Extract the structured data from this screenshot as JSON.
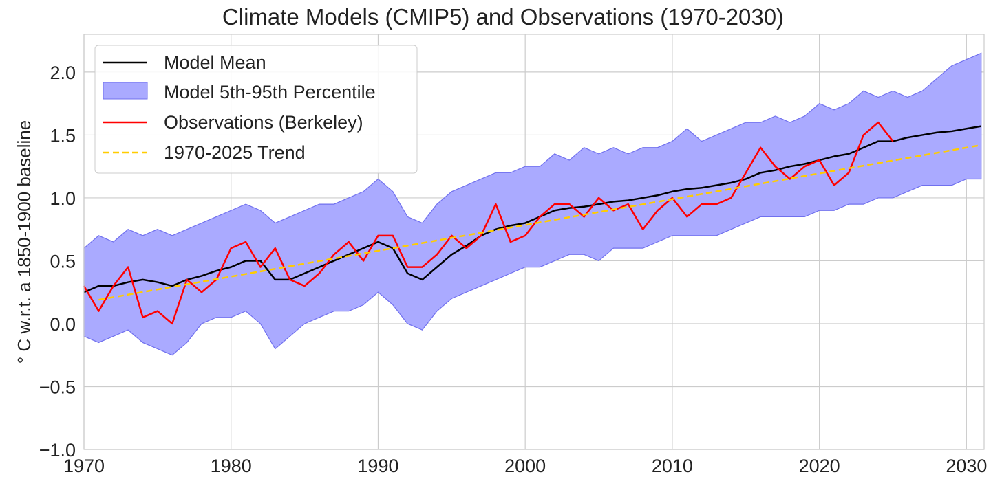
{
  "chart_data": {
    "type": "line",
    "title": "Climate Models (CMIP5) and Observations (1970-2030)",
    "xlabel": "",
    "ylabel": "° C w.r.t. a 1850-1900 baseline",
    "xlim": [
      1970,
      2031.2
    ],
    "ylim": [
      -1.0,
      2.3
    ],
    "grid": true,
    "legend_placement": "top-left",
    "x_ticks": [
      "1970",
      "1980",
      "1990",
      "2000",
      "2010",
      "2020",
      "2030"
    ],
    "y_ticks": [
      "−1.0",
      "−0.5",
      "0.0",
      "0.5",
      "1.0",
      "1.5",
      "2.0"
    ],
    "x_tick_values": [
      1970,
      1980,
      1990,
      2000,
      2010,
      2020,
      2030
    ],
    "y_tick_values": [
      -1.0,
      -0.5,
      0.0,
      0.5,
      1.0,
      1.5,
      2.0
    ],
    "legend": [
      "Model Mean",
      "Model 5th-95th Percentile",
      "Observations (Berkeley)",
      "1970-2025 Trend"
    ],
    "colors": {
      "mean": "#000000",
      "band_fill": "#aaaaff",
      "band_edge": "#7070ee",
      "obs": "#ff0000",
      "trend": "#ffcc00"
    },
    "model_years_start": 1970,
    "model_mean": [
      0.25,
      0.3,
      0.3,
      0.33,
      0.35,
      0.33,
      0.3,
      0.35,
      0.38,
      0.42,
      0.45,
      0.5,
      0.5,
      0.35,
      0.35,
      0.4,
      0.45,
      0.5,
      0.55,
      0.6,
      0.65,
      0.6,
      0.4,
      0.35,
      0.45,
      0.55,
      0.62,
      0.7,
      0.75,
      0.78,
      0.8,
      0.85,
      0.9,
      0.92,
      0.93,
      0.95,
      0.97,
      0.98,
      1.0,
      1.02,
      1.05,
      1.07,
      1.08,
      1.1,
      1.12,
      1.15,
      1.2,
      1.22,
      1.25,
      1.27,
      1.3,
      1.33,
      1.35,
      1.4,
      1.45,
      1.45,
      1.48,
      1.5,
      1.52,
      1.53,
      1.55,
      1.57
    ],
    "model_p95": [
      0.6,
      0.7,
      0.65,
      0.75,
      0.7,
      0.75,
      0.7,
      0.75,
      0.8,
      0.85,
      0.9,
      0.95,
      0.9,
      0.8,
      0.85,
      0.9,
      0.95,
      0.95,
      1.0,
      1.05,
      1.15,
      1.05,
      0.85,
      0.8,
      0.95,
      1.05,
      1.1,
      1.15,
      1.2,
      1.2,
      1.25,
      1.25,
      1.35,
      1.3,
      1.4,
      1.35,
      1.4,
      1.35,
      1.4,
      1.4,
      1.45,
      1.55,
      1.45,
      1.5,
      1.55,
      1.6,
      1.6,
      1.65,
      1.6,
      1.65,
      1.75,
      1.7,
      1.75,
      1.85,
      1.8,
      1.85,
      1.8,
      1.85,
      1.95,
      2.05,
      2.1,
      2.15
    ],
    "model_p5": [
      -0.1,
      -0.15,
      -0.1,
      -0.05,
      -0.15,
      -0.2,
      -0.25,
      -0.15,
      0.0,
      0.05,
      0.05,
      0.1,
      0.0,
      -0.2,
      -0.1,
      0.0,
      0.05,
      0.1,
      0.1,
      0.15,
      0.25,
      0.15,
      0.0,
      -0.05,
      0.1,
      0.2,
      0.25,
      0.3,
      0.35,
      0.4,
      0.45,
      0.45,
      0.5,
      0.55,
      0.55,
      0.5,
      0.6,
      0.6,
      0.6,
      0.65,
      0.7,
      0.7,
      0.7,
      0.7,
      0.75,
      0.8,
      0.85,
      0.85,
      0.85,
      0.85,
      0.9,
      0.9,
      0.95,
      0.95,
      1.0,
      1.0,
      1.05,
      1.1,
      1.1,
      1.1,
      1.15,
      1.15
    ],
    "obs_years_start": 1970,
    "observations": [
      0.3,
      0.1,
      0.3,
      0.45,
      0.05,
      0.1,
      0.0,
      0.35,
      0.25,
      0.35,
      0.6,
      0.65,
      0.45,
      0.6,
      0.35,
      0.3,
      0.4,
      0.55,
      0.65,
      0.5,
      0.7,
      0.7,
      0.45,
      0.45,
      0.55,
      0.7,
      0.6,
      0.7,
      0.95,
      0.65,
      0.7,
      0.85,
      0.95,
      0.95,
      0.85,
      1.0,
      0.9,
      0.95,
      0.75,
      0.9,
      1.0,
      0.85,
      0.95,
      0.95,
      1.0,
      1.2,
      1.4,
      1.25,
      1.15,
      1.25,
      1.3,
      1.1,
      1.2,
      1.5,
      1.6,
      1.45
    ],
    "trend": {
      "x": [
        1971,
        2031
      ],
      "y": [
        0.19,
        1.42
      ]
    }
  }
}
